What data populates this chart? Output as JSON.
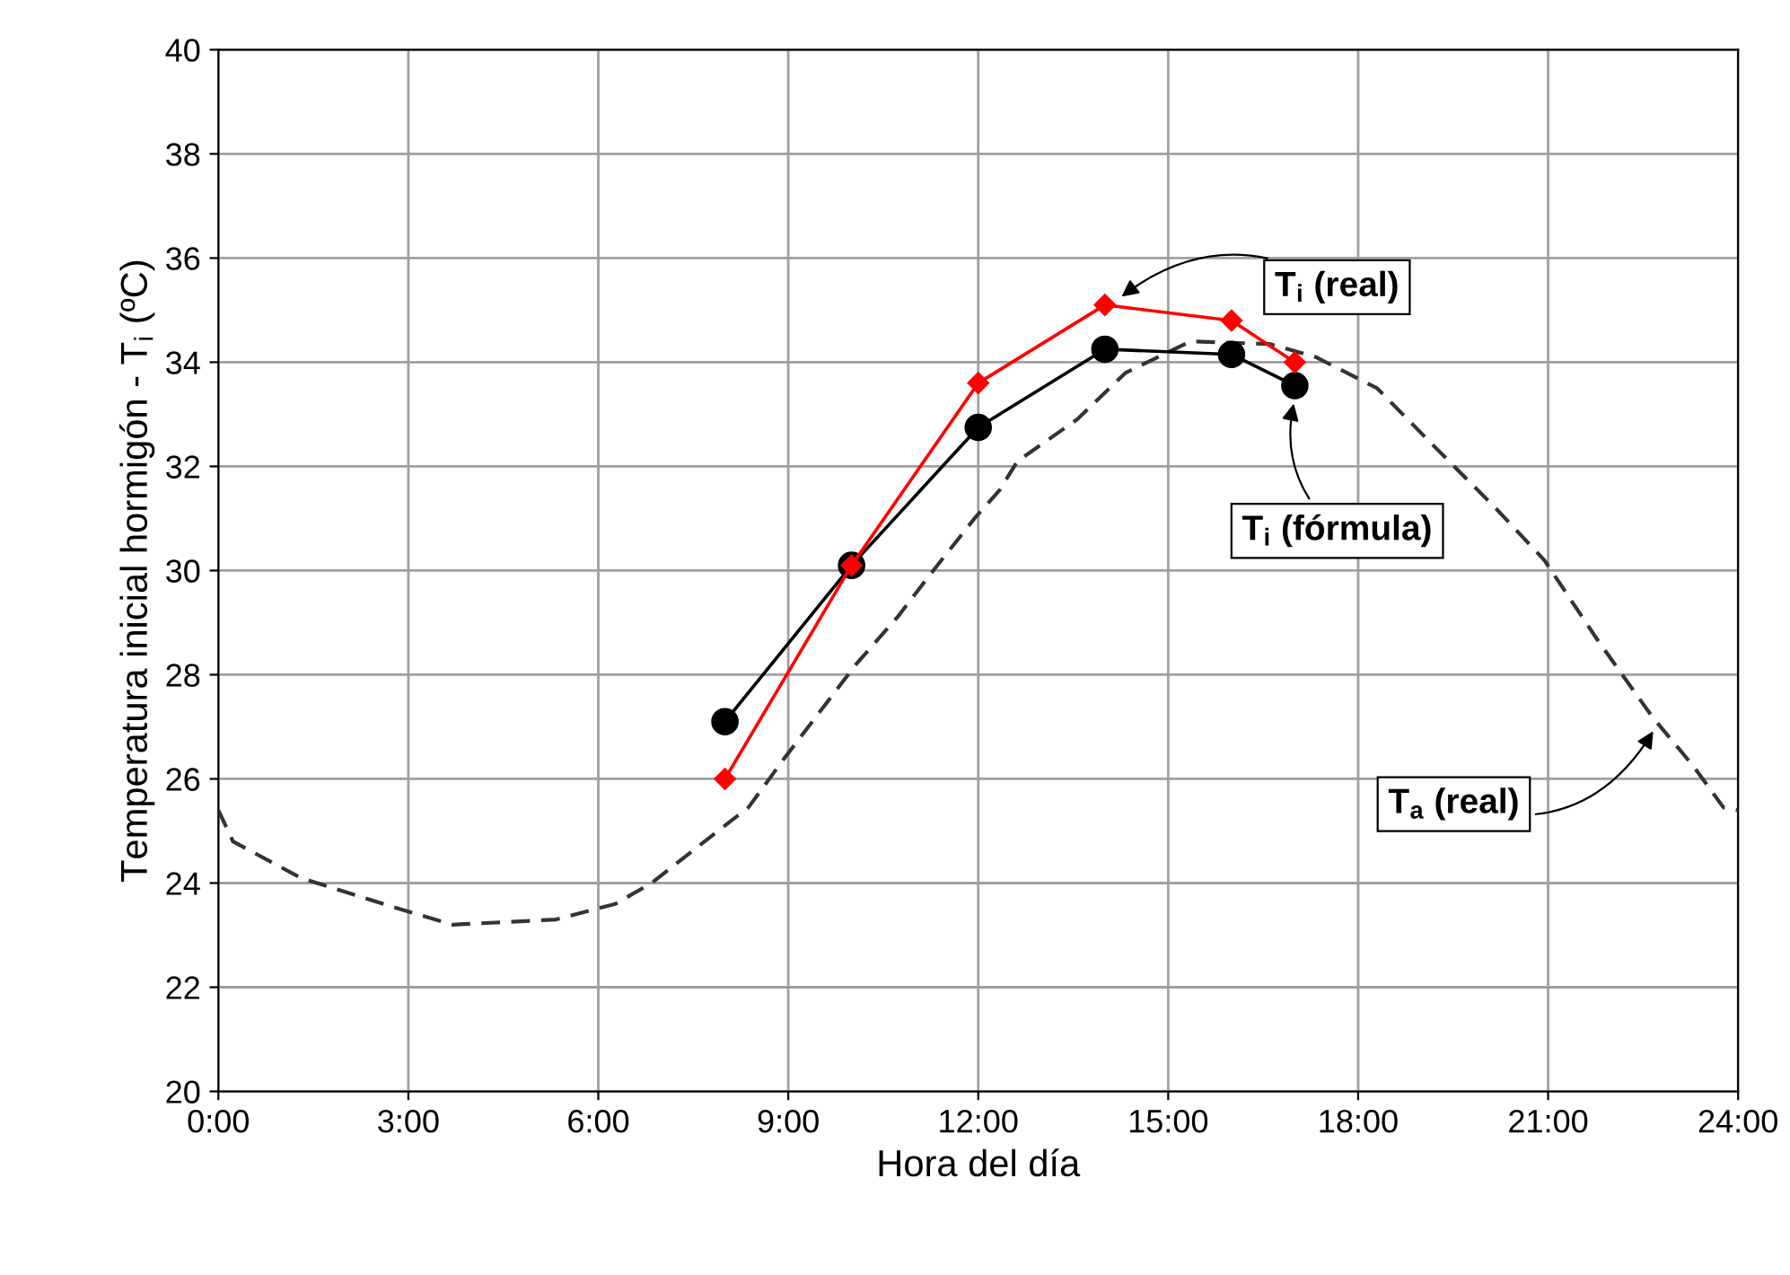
{
  "chart_data": {
    "type": "line",
    "xlabel": "Hora del día",
    "ylabel": "Temperatura inicial hormigón - T$_{i}$ (ºC)",
    "xlim": [
      0,
      24
    ],
    "ylim": [
      20,
      40
    ],
    "xticks": [
      {
        "value": 0,
        "label": "0:00"
      },
      {
        "value": 3,
        "label": "3:00"
      },
      {
        "value": 6,
        "label": "6:00"
      },
      {
        "value": 9,
        "label": "9:00"
      },
      {
        "value": 12,
        "label": "12:00"
      },
      {
        "value": 15,
        "label": "15:00"
      },
      {
        "value": 18,
        "label": "18:00"
      },
      {
        "value": 21,
        "label": "21:00"
      },
      {
        "value": 24,
        "label": "24:00"
      }
    ],
    "yticks": [
      20,
      22,
      24,
      26,
      28,
      30,
      32,
      34,
      36,
      38,
      40
    ],
    "grid": true,
    "series": [
      {
        "color": "#333333",
        "marker": "none",
        "line_style": "dashed",
        "x": [
          0,
          0.23,
          1.3,
          2.87,
          3.7,
          5.33,
          6.27,
          6.84,
          7.89,
          8.37,
          8.94,
          10.07,
          10.72,
          11.29,
          11.94,
          12.34,
          12.62,
          13.56,
          14.33,
          15.35,
          16.6,
          17.33,
          18.3,
          19.23,
          20.17,
          20.94,
          21.79,
          22.64,
          23.29,
          23.77,
          24
        ],
        "values": [
          25.4,
          24.8,
          24.1,
          23.5,
          23.2,
          23.3,
          23.6,
          24.0,
          25.0,
          25.45,
          26.4,
          28.2,
          29.1,
          30.0,
          31.0,
          31.55,
          32.1,
          32.9,
          33.8,
          34.4,
          34.35,
          34.1,
          33.5,
          32.35,
          31.2,
          30.2,
          28.65,
          27.2,
          26.25,
          25.45,
          25.4
        ]
      },
      {
        "color": "#000000",
        "marker": "circle",
        "line_style": "solid",
        "x": [
          8,
          10,
          12,
          14,
          16,
          17
        ],
        "values": [
          27.1,
          30.1,
          32.75,
          34.25,
          34.15,
          33.55
        ]
      },
      {
        "color": "#ff0000",
        "marker": "diamond",
        "line_style": "solid",
        "x": [
          8,
          10,
          12,
          14,
          16,
          17
        ],
        "values": [
          26.0,
          30.1,
          33.6,
          35.1,
          34.8,
          34.0
        ]
      }
    ],
    "annotations": [
      {
        "text": "T$_{i}$ (real)",
        "x": 14.2,
        "y": 35.2
      },
      {
        "text": "T$_{i}$ (fórmula)",
        "x": 17,
        "y": 33.3
      },
      {
        "text": "T$_{a}$ (real)",
        "x": 22.7,
        "y": 27.0
      }
    ]
  }
}
